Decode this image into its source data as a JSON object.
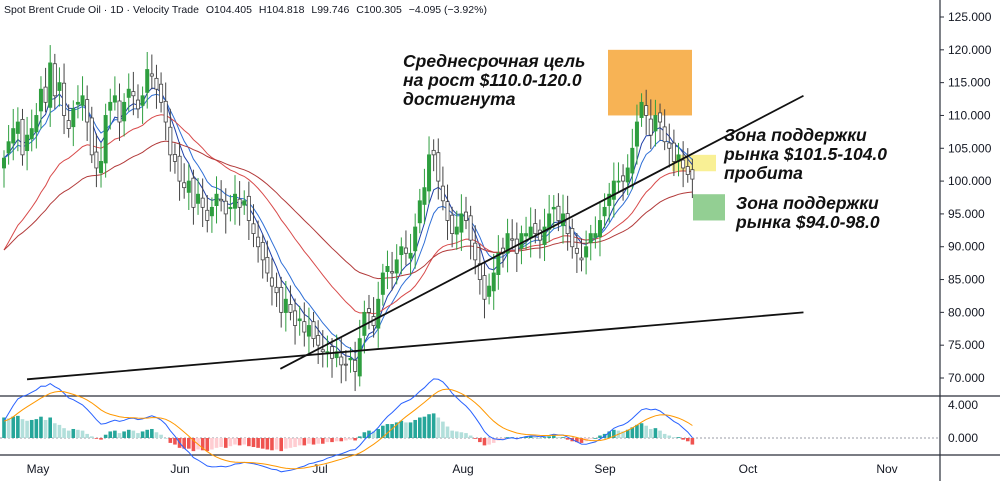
{
  "header": {
    "symbol": "Spot Brent Crude Oil · 1D · Velocity Trade",
    "open": "O104.405",
    "high": "H104.818",
    "low": "L99.746",
    "close": "C100.305",
    "change": "−4.095 (−3.92%)"
  },
  "annotations": {
    "target": "Среднесрочная цель\nна рост $110.0-120.0\nдостигнута",
    "support_broken": "Зона поддержки\nрынка $101.5-104.0\nпробита",
    "support_next": "Зона поддержки\nрынка $94.0-98.0"
  },
  "colors": {
    "up": "#26a69a",
    "down": "#ef5350",
    "green_candle": "#2e9e3f",
    "dark_candle": "#444444",
    "target_zone": "#f6a637",
    "broken_zone": "#f7ec7a",
    "support_zone": "#6fbf6f",
    "ema_fast": "#2f6fd6",
    "ema_slow": "#d84a4a"
  },
  "chart_data": {
    "type": "candlestick",
    "title": "Spot Brent Crude Oil · 1D · Velocity Trade",
    "ylim": [
      67.5,
      127.5
    ],
    "y_ticks": [
      "125.000",
      "120.000",
      "115.000",
      "110.000",
      "105.000",
      "100.000",
      "95.000",
      "90.000",
      "85.000",
      "80.000",
      "75.000",
      "70.000"
    ],
    "x_ticks": [
      "May",
      "Jun",
      "Jul",
      "Aug",
      "Sep",
      "Oct",
      "Nov"
    ],
    "last_close": 100.305,
    "zones": [
      {
        "name": "target",
        "from": 110.0,
        "to": 120.0
      },
      {
        "name": "broken_support",
        "from": 101.5,
        "to": 104.0
      },
      {
        "name": "support",
        "from": 94.0,
        "to": 98.0
      }
    ],
    "trendlines": [
      {
        "from": [
          "2022-04-28",
          69.8
        ],
        "to": [
          "2022-12-20",
          80.0
        ]
      },
      {
        "from": [
          "2022-07-14",
          71.4
        ],
        "to": [
          "2022-12-20",
          113.0
        ]
      }
    ],
    "candles_close": [
      103.5,
      106,
      108,
      109,
      104,
      107,
      108,
      110,
      114,
      112,
      118,
      113,
      115,
      110,
      108,
      111,
      112,
      113,
      109,
      104,
      102,
      103,
      110,
      112,
      113,
      109,
      112,
      114,
      113,
      111,
      113,
      117,
      116,
      114,
      112,
      109,
      104,
      103,
      100,
      99,
      100,
      96,
      98,
      96,
      94,
      96,
      98,
      97,
      95,
      96,
      98,
      96,
      97,
      94,
      92,
      90,
      88,
      86,
      84,
      83,
      80,
      82,
      80,
      78,
      79,
      77,
      78,
      76,
      75,
      74,
      74,
      73,
      74,
      72,
      72,
      73,
      71,
      76,
      80,
      80,
      78,
      82,
      86,
      87,
      86,
      88,
      90,
      89,
      89,
      93,
      97,
      99,
      104,
      104,
      100,
      97,
      94,
      92,
      93,
      95,
      94,
      91,
      88,
      85,
      82,
      84,
      86,
      89,
      89,
      92,
      91,
      89,
      92,
      92,
      93,
      92,
      91,
      93,
      95,
      96,
      94,
      95,
      92,
      90,
      89,
      88,
      90,
      92,
      92,
      94,
      96,
      98,
      100,
      100,
      100,
      102,
      105,
      109,
      112,
      110,
      107,
      110,
      109,
      106,
      105,
      103,
      104,
      102,
      101,
      100.305
    ],
    "macd_ticks": [
      "4.000",
      "0.000"
    ],
    "macd_hist": [
      2.5,
      2.4,
      2.6,
      2.7,
      2.3,
      2.1,
      2.2,
      2.3,
      2.6,
      2.2,
      2.5,
      1.8,
      1.6,
      1.2,
      0.9,
      1.1,
      1.0,
      0.9,
      0.5,
      0.2,
      -0.1,
      -0.2,
      0.4,
      0.8,
      0.9,
      0.6,
      0.8,
      1.0,
      0.9,
      0.6,
      0.8,
      1.0,
      1.1,
      0.7,
      0.4,
      0.0,
      -0.6,
      -0.8,
      -1.2,
      -1.3,
      -1.3,
      -1.6,
      -1.4,
      -1.5,
      -1.6,
      -1.4,
      -1.2,
      -1.1,
      -1.2,
      -1.0,
      -0.8,
      -0.9,
      -0.8,
      -1.0,
      -1.1,
      -1.2,
      -1.3,
      -1.4,
      -1.5,
      -1.4,
      -1.6,
      -1.3,
      -1.2,
      -1.1,
      -0.9,
      -0.9,
      -0.7,
      -0.8,
      -0.7,
      -0.7,
      -0.5,
      -0.5,
      -0.4,
      -0.4,
      -0.3,
      -0.2,
      -0.3,
      0.2,
      0.7,
      0.9,
      0.8,
      1.1,
      1.5,
      1.7,
      1.7,
      1.9,
      2.1,
      1.9,
      1.9,
      2.2,
      2.5,
      2.6,
      2.9,
      3.0,
      2.5,
      2.0,
      1.4,
      0.9,
      0.8,
      0.7,
      0.6,
      0.3,
      -0.1,
      -0.5,
      -0.9,
      -0.8,
      -0.6,
      -0.3,
      -0.2,
      0.1,
      0.1,
      -0.1,
      0.1,
      0.2,
      0.2,
      0.1,
      0.0,
      0.1,
      0.2,
      0.3,
      0.1,
      0.1,
      -0.2,
      -0.4,
      -0.5,
      -0.6,
      -0.4,
      -0.1,
      0.0,
      0.3,
      0.5,
      0.8,
      1.0,
      0.9,
      0.8,
      1.0,
      1.3,
      1.6,
      1.8,
      1.5,
      1.1,
      1.2,
      0.9,
      0.5,
      0.3,
      0.1,
      0.1,
      -0.2,
      -0.4,
      -0.8
    ]
  }
}
